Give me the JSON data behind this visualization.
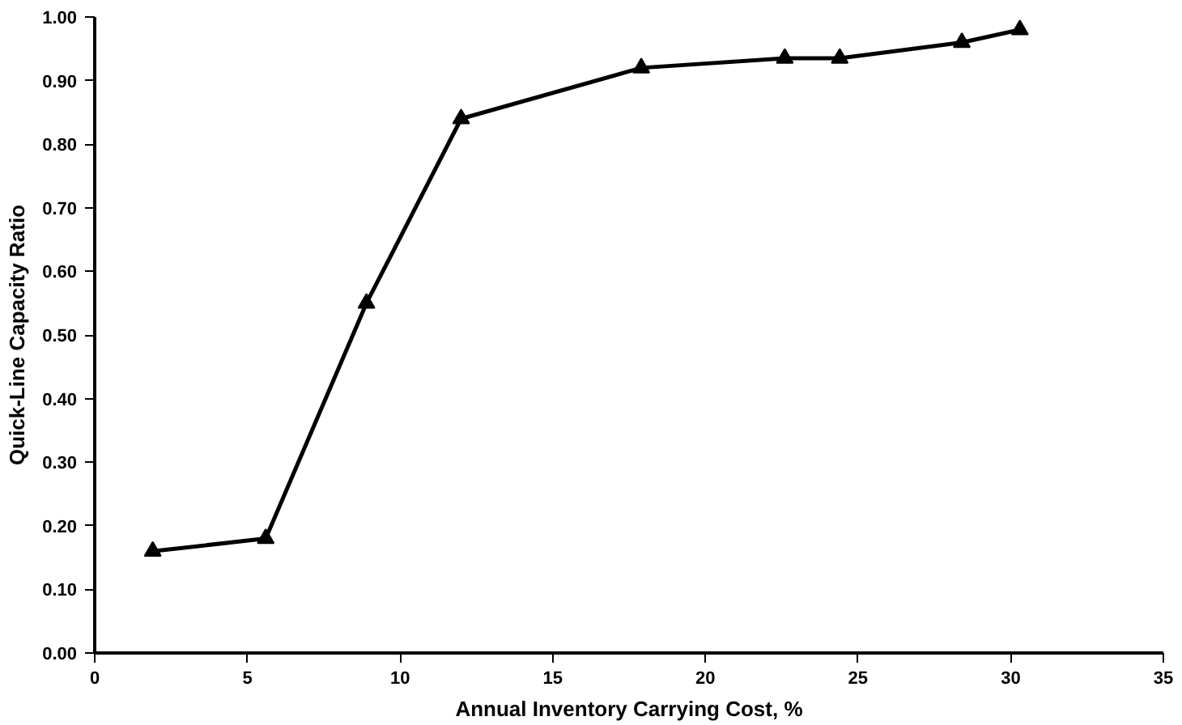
{
  "chart_data": {
    "type": "line",
    "xlabel": "Annual Inventory Carrying Cost, %",
    "ylabel": "Quick-Line Capacity Ratio",
    "x": [
      1.9,
      5.6,
      8.9,
      12.0,
      17.9,
      22.6,
      24.4,
      28.4,
      30.3
    ],
    "values": [
      0.16,
      0.18,
      0.55,
      0.84,
      0.92,
      0.935,
      0.935,
      0.96,
      0.98
    ],
    "color": "#000000",
    "marker": "triangle",
    "line_style": "solid",
    "xlim": [
      0,
      35
    ],
    "xticks": [
      0,
      5,
      10,
      15,
      20,
      25,
      30,
      35
    ],
    "ylim": [
      0,
      1
    ],
    "yticks": [
      {
        "value": 0,
        "label": "0.00"
      },
      {
        "value": 0.1,
        "label": "0.10"
      },
      {
        "value": 0.2,
        "label": "0.20"
      },
      {
        "value": 0.3,
        "label": "0.30"
      },
      {
        "value": 0.4,
        "label": "0.40"
      },
      {
        "value": 0.5,
        "label": "0.50"
      },
      {
        "value": 0.6,
        "label": "0.60"
      },
      {
        "value": 0.7,
        "label": "0.70"
      },
      {
        "value": 0.8,
        "label": "0.80"
      },
      {
        "value": 0.9,
        "label": "0.90"
      },
      {
        "value": 1.0,
        "label": "1.00"
      }
    ]
  }
}
